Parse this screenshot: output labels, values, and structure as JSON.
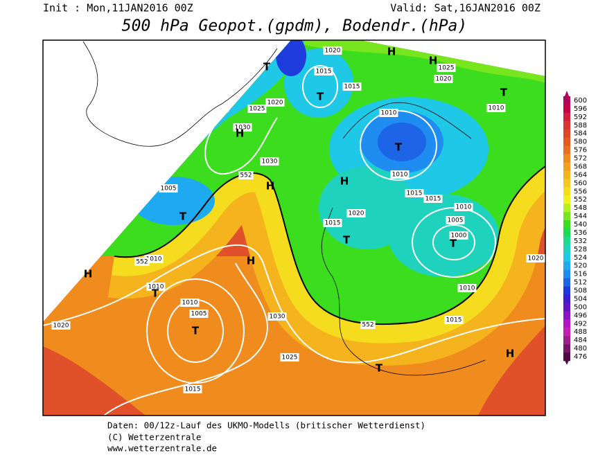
{
  "header": {
    "init": "Init : Mon,11JAN2016 00Z",
    "valid": "Valid: Sat,16JAN2016 00Z",
    "title": "500 hPa Geopot.(gpdm), Bodendr.(hPa)"
  },
  "colorbar": {
    "labels": [
      600,
      596,
      592,
      588,
      584,
      580,
      576,
      572,
      568,
      564,
      560,
      556,
      552,
      548,
      544,
      540,
      536,
      532,
      528,
      524,
      520,
      516,
      512,
      508,
      504,
      500,
      496,
      492,
      488,
      484,
      480,
      476
    ],
    "colors": [
      "#b4005a",
      "#c80046",
      "#d21e3c",
      "#dc3232",
      "#e14628",
      "#e65a1e",
      "#eb6e1e",
      "#f08c1e",
      "#f5a01e",
      "#f5b41e",
      "#f5c81e",
      "#f5dc1e",
      "#f0f01e",
      "#b4f01e",
      "#78e61e",
      "#3cdc1e",
      "#1edc50",
      "#1edc8c",
      "#1ed2be",
      "#1ec8e6",
      "#1eaaf0",
      "#1e8cf0",
      "#1e64e6",
      "#1e3cdc",
      "#3c1ed2",
      "#6414c8",
      "#8c14c8",
      "#b414c8",
      "#c81eb4",
      "#a01e8c",
      "#781464",
      "#500a46"
    ]
  },
  "map": {
    "isobar_labels": [
      "1020",
      "1015",
      "1015",
      "1020",
      "1025",
      "1030",
      "1010",
      "1010",
      "1025",
      "1020",
      "1030",
      "552",
      "1010",
      "1015",
      "1015",
      "1005",
      "1020",
      "1015",
      "1010",
      "1005",
      "1000",
      "1010",
      "552",
      "1010",
      "1010",
      "1005",
      "1030",
      "1020",
      "552",
      "1015",
      "1010",
      "1025",
      "1015",
      "1020"
    ],
    "pressure_centers": [
      "T",
      "H",
      "H",
      "T",
      "T",
      "H",
      "T",
      "H",
      "H",
      "T",
      "T",
      "T",
      "H",
      "H",
      "T",
      "T",
      "T",
      "H"
    ]
  },
  "footer": {
    "lines": [
      "Daten: 00/12z-Lauf des UKMO-Modells (britischer Wetterdienst)",
      "(C) Wetterzentrale",
      "www.wetterzentrale.de"
    ]
  }
}
